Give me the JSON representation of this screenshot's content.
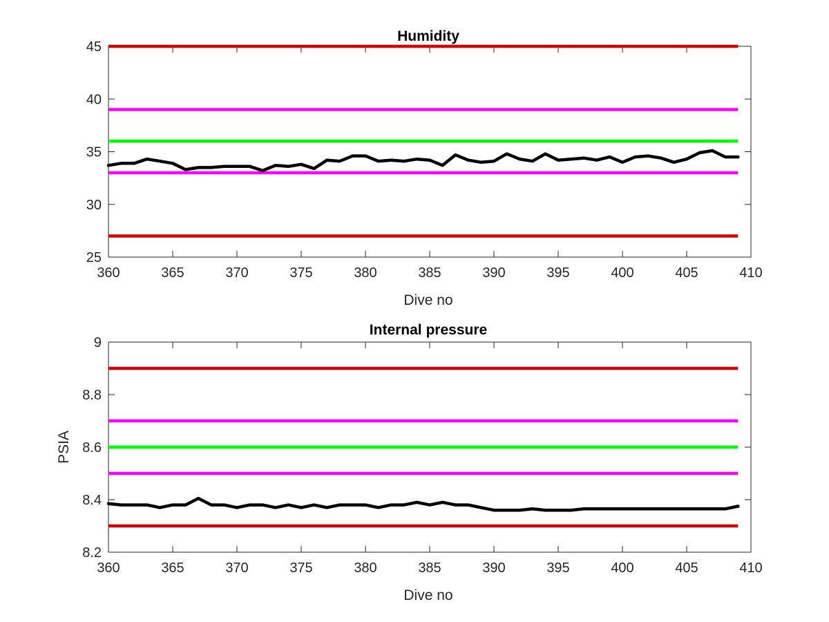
{
  "chart_data": [
    {
      "type": "line",
      "title": "Humidity",
      "xlabel": "Dive no",
      "ylabel": "",
      "xlim": [
        360,
        410
      ],
      "ylim": [
        25,
        45
      ],
      "xticks": [
        "360",
        "365",
        "370",
        "375",
        "380",
        "385",
        "390",
        "395",
        "400",
        "405",
        "410"
      ],
      "yticks": [
        "25",
        "30",
        "35",
        "40",
        "45"
      ],
      "grid": false,
      "x_range": [
        360,
        409
      ],
      "limit_lines": [
        {
          "y": 45,
          "color": "#d40000"
        },
        {
          "y": 27,
          "color": "#d40000"
        },
        {
          "y": 39,
          "color": "#ff00ff"
        },
        {
          "y": 33,
          "color": "#ff00ff"
        },
        {
          "y": 36,
          "color": "#00ff00"
        }
      ],
      "series": [
        {
          "color": "#000000",
          "x": [
            360,
            361,
            362,
            363,
            364,
            365,
            366,
            367,
            368,
            369,
            370,
            371,
            372,
            373,
            374,
            375,
            376,
            377,
            378,
            379,
            380,
            381,
            382,
            383,
            384,
            385,
            386,
            387,
            388,
            389,
            390,
            391,
            392,
            393,
            394,
            395,
            396,
            397,
            398,
            399,
            400,
            401,
            402,
            403,
            404,
            405,
            406,
            407,
            408,
            409
          ],
          "values": [
            33.7,
            33.9,
            33.9,
            34.3,
            34.1,
            33.9,
            33.3,
            33.5,
            33.5,
            33.6,
            33.6,
            33.6,
            33.2,
            33.7,
            33.6,
            33.8,
            33.4,
            34.2,
            34.1,
            34.6,
            34.6,
            34.1,
            34.2,
            34.1,
            34.3,
            34.2,
            33.7,
            34.7,
            34.2,
            34.0,
            34.1,
            34.8,
            34.3,
            34.1,
            34.8,
            34.2,
            34.3,
            34.4,
            34.2,
            34.5,
            34.0,
            34.5,
            34.6,
            34.4,
            34.0,
            34.3,
            34.9,
            35.1,
            34.5,
            34.5
          ]
        }
      ]
    },
    {
      "type": "line",
      "title": "Internal pressure",
      "xlabel": "Dive no",
      "ylabel": "PSIA",
      "xlim": [
        360,
        410
      ],
      "ylim": [
        8.2,
        9.0
      ],
      "xticks": [
        "360",
        "365",
        "370",
        "375",
        "380",
        "385",
        "390",
        "395",
        "400",
        "405",
        "410"
      ],
      "yticks": [
        "8.2",
        "8.4",
        "8.6",
        "8.8",
        "9"
      ],
      "grid": false,
      "x_range": [
        360,
        409
      ],
      "limit_lines": [
        {
          "y": 8.9,
          "color": "#d40000"
        },
        {
          "y": 8.3,
          "color": "#d40000"
        },
        {
          "y": 8.7,
          "color": "#ff00ff"
        },
        {
          "y": 8.5,
          "color": "#ff00ff"
        },
        {
          "y": 8.6,
          "color": "#00ff00"
        }
      ],
      "series": [
        {
          "color": "#000000",
          "x": [
            360,
            361,
            362,
            363,
            364,
            365,
            366,
            367,
            368,
            369,
            370,
            371,
            372,
            373,
            374,
            375,
            376,
            377,
            378,
            379,
            380,
            381,
            382,
            383,
            384,
            385,
            386,
            387,
            388,
            389,
            390,
            391,
            392,
            393,
            394,
            395,
            396,
            397,
            398,
            399,
            400,
            401,
            402,
            403,
            404,
            405,
            406,
            407,
            408,
            409
          ],
          "values": [
            8.385,
            8.38,
            8.38,
            8.38,
            8.37,
            8.38,
            8.38,
            8.405,
            8.38,
            8.38,
            8.37,
            8.38,
            8.38,
            8.37,
            8.38,
            8.37,
            8.38,
            8.37,
            8.38,
            8.38,
            8.38,
            8.37,
            8.38,
            8.38,
            8.39,
            8.38,
            8.39,
            8.38,
            8.38,
            8.37,
            8.36,
            8.36,
            8.36,
            8.365,
            8.36,
            8.36,
            8.36,
            8.365,
            8.365,
            8.365,
            8.365,
            8.365,
            8.365,
            8.365,
            8.365,
            8.365,
            8.365,
            8.365,
            8.365,
            8.375
          ]
        }
      ]
    }
  ]
}
